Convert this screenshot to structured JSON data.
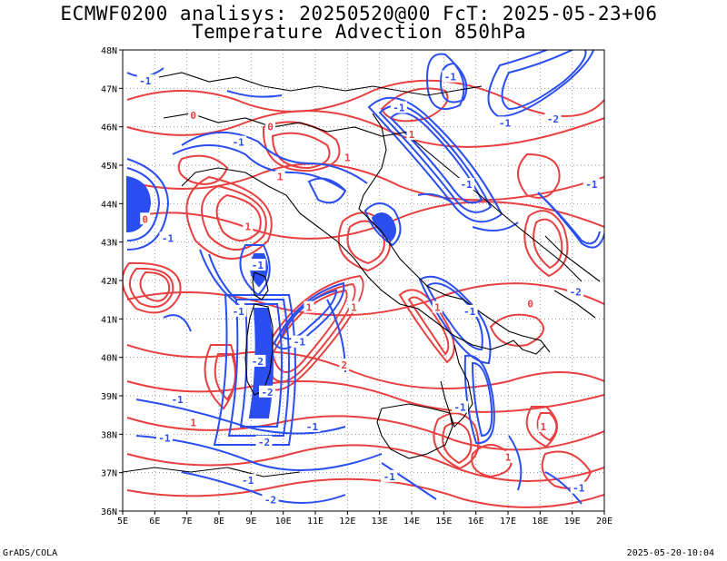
{
  "title_line1": "ECMWF0200 analisys: 20250520@00 FcT: 2025-05-23+06",
  "title_line2": "Temperature Advection 850hPa",
  "footer_left": "GrADS/COLA",
  "footer_right": "2025-05-20-10:04",
  "map": {
    "lon_range": [
      5,
      20
    ],
    "lat_range": [
      36,
      48
    ],
    "lon_labels": [
      "5E",
      "6E",
      "7E",
      "8E",
      "9E",
      "10E",
      "11E",
      "12E",
      "13E",
      "14E",
      "15E",
      "16E",
      "17E",
      "18E",
      "19E",
      "20E"
    ],
    "lat_labels": [
      "36N",
      "37N",
      "38N",
      "39N",
      "40N",
      "41N",
      "42N",
      "43N",
      "44N",
      "45N",
      "46N",
      "47N",
      "48N"
    ],
    "grid": "dotted",
    "colors": {
      "positive": "#e84040",
      "negative": "#2a4ef0",
      "land": "#000000"
    }
  },
  "contour_labels": [
    {
      "lon": 5.7,
      "lat": 47.2,
      "text": "-1"
    },
    {
      "lon": 7.2,
      "lat": 46.3,
      "text": "0"
    },
    {
      "lon": 8.6,
      "lat": 45.6,
      "text": "-1"
    },
    {
      "lon": 9.9,
      "lat": 44.7,
      "text": "1"
    },
    {
      "lon": 9.6,
      "lat": 46.0,
      "text": "0"
    },
    {
      "lon": 12.0,
      "lat": 45.2,
      "text": "1"
    },
    {
      "lon": 13.6,
      "lat": 46.5,
      "text": "-1"
    },
    {
      "lon": 14.0,
      "lat": 45.8,
      "text": "1"
    },
    {
      "lon": 15.2,
      "lat": 47.3,
      "text": "-1"
    },
    {
      "lon": 16.9,
      "lat": 46.1,
      "text": "-1"
    },
    {
      "lon": 18.4,
      "lat": 46.2,
      "text": "-2"
    },
    {
      "lon": 19.6,
      "lat": 44.5,
      "text": "-1"
    },
    {
      "lon": 15.7,
      "lat": 44.5,
      "text": "-1"
    },
    {
      "lon": 6.4,
      "lat": 43.1,
      "text": "-1"
    },
    {
      "lon": 5.7,
      "lat": 43.6,
      "text": "0"
    },
    {
      "lon": 8.9,
      "lat": 43.4,
      "text": "1"
    },
    {
      "lon": 9.2,
      "lat": 42.4,
      "text": "-1"
    },
    {
      "lon": 8.6,
      "lat": 41.2,
      "text": "-1"
    },
    {
      "lon": 9.2,
      "lat": 39.9,
      "text": "-2"
    },
    {
      "lon": 10.5,
      "lat": 40.4,
      "text": "-1"
    },
    {
      "lon": 10.8,
      "lat": 41.3,
      "text": "1"
    },
    {
      "lon": 12.2,
      "lat": 41.3,
      "text": "1"
    },
    {
      "lon": 14.8,
      "lat": 41.3,
      "text": "1"
    },
    {
      "lon": 15.8,
      "lat": 41.2,
      "text": "-1"
    },
    {
      "lon": 11.9,
      "lat": 39.8,
      "text": "2"
    },
    {
      "lon": 9.5,
      "lat": 39.1,
      "text": "-2"
    },
    {
      "lon": 6.7,
      "lat": 38.9,
      "text": "-1"
    },
    {
      "lon": 7.2,
      "lat": 38.3,
      "text": "1"
    },
    {
      "lon": 6.3,
      "lat": 37.9,
      "text": "-1"
    },
    {
      "lon": 9.4,
      "lat": 37.8,
      "text": "-2"
    },
    {
      "lon": 10.9,
      "lat": 38.2,
      "text": "-1"
    },
    {
      "lon": 13.3,
      "lat": 36.9,
      "text": "-1"
    },
    {
      "lon": 17.7,
      "lat": 41.4,
      "text": "0"
    },
    {
      "lon": 19.1,
      "lat": 41.7,
      "text": "-2"
    },
    {
      "lon": 15.5,
      "lat": 38.7,
      "text": "-1"
    },
    {
      "lon": 17.0,
      "lat": 37.4,
      "text": "1"
    },
    {
      "lon": 18.1,
      "lat": 38.2,
      "text": "1"
    },
    {
      "lon": 19.2,
      "lat": 36.6,
      "text": "-1"
    },
    {
      "lon": 8.9,
      "lat": 36.8,
      "text": "-1"
    },
    {
      "lon": 9.6,
      "lat": 36.3,
      "text": "-2"
    }
  ]
}
